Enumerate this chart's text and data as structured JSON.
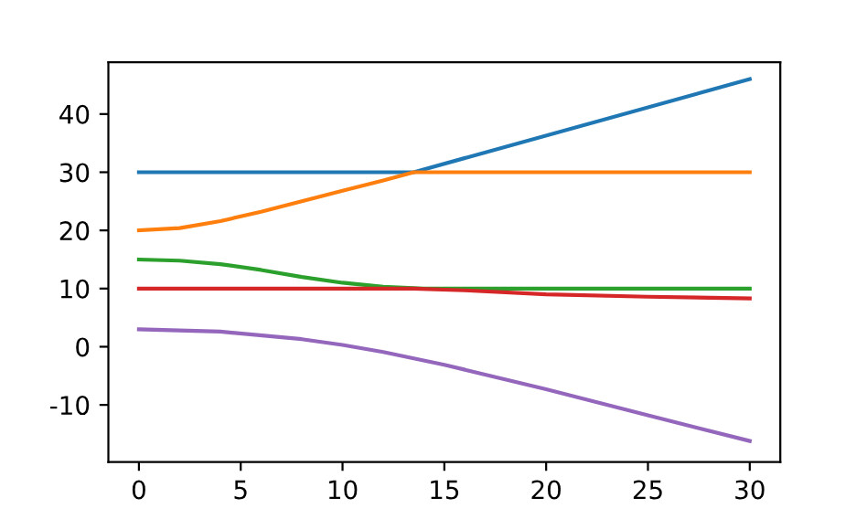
{
  "chart_data": {
    "type": "line",
    "xlim": [
      -1.5,
      31.5
    ],
    "ylim": [
      -19.8,
      48.9
    ],
    "xticks": [
      0,
      5,
      10,
      15,
      20,
      25,
      30
    ],
    "yticks": [
      -10,
      0,
      10,
      20,
      30,
      40
    ],
    "grid": false,
    "series": [
      {
        "color": "#1f77b4",
        "x": [
          0,
          13.5,
          30
        ],
        "values": [
          30,
          30,
          46
        ]
      },
      {
        "color": "#ff7f0e",
        "x": [
          0,
          2,
          4,
          6,
          8,
          10,
          12,
          13.5,
          30
        ],
        "values": [
          20,
          20.4,
          21.6,
          23.2,
          25,
          26.8,
          28.6,
          30,
          30
        ]
      },
      {
        "color": "#2ca02c",
        "x": [
          0,
          2,
          4,
          6,
          8,
          10,
          12,
          14,
          30
        ],
        "values": [
          15,
          14.8,
          14.2,
          13.2,
          12,
          11,
          10.3,
          10,
          10
        ]
      },
      {
        "color": "#d62728",
        "x": [
          0,
          13.5,
          16,
          20,
          25,
          30
        ],
        "values": [
          10,
          10,
          9.7,
          9,
          8.6,
          8.3
        ]
      },
      {
        "color": "#9467bd",
        "x": [
          0,
          4,
          8,
          10,
          12,
          15,
          20,
          25,
          30
        ],
        "values": [
          3,
          2.6,
          1.3,
          0.3,
          -0.9,
          -3.1,
          -7.3,
          -11.8,
          -16.2
        ]
      }
    ]
  }
}
